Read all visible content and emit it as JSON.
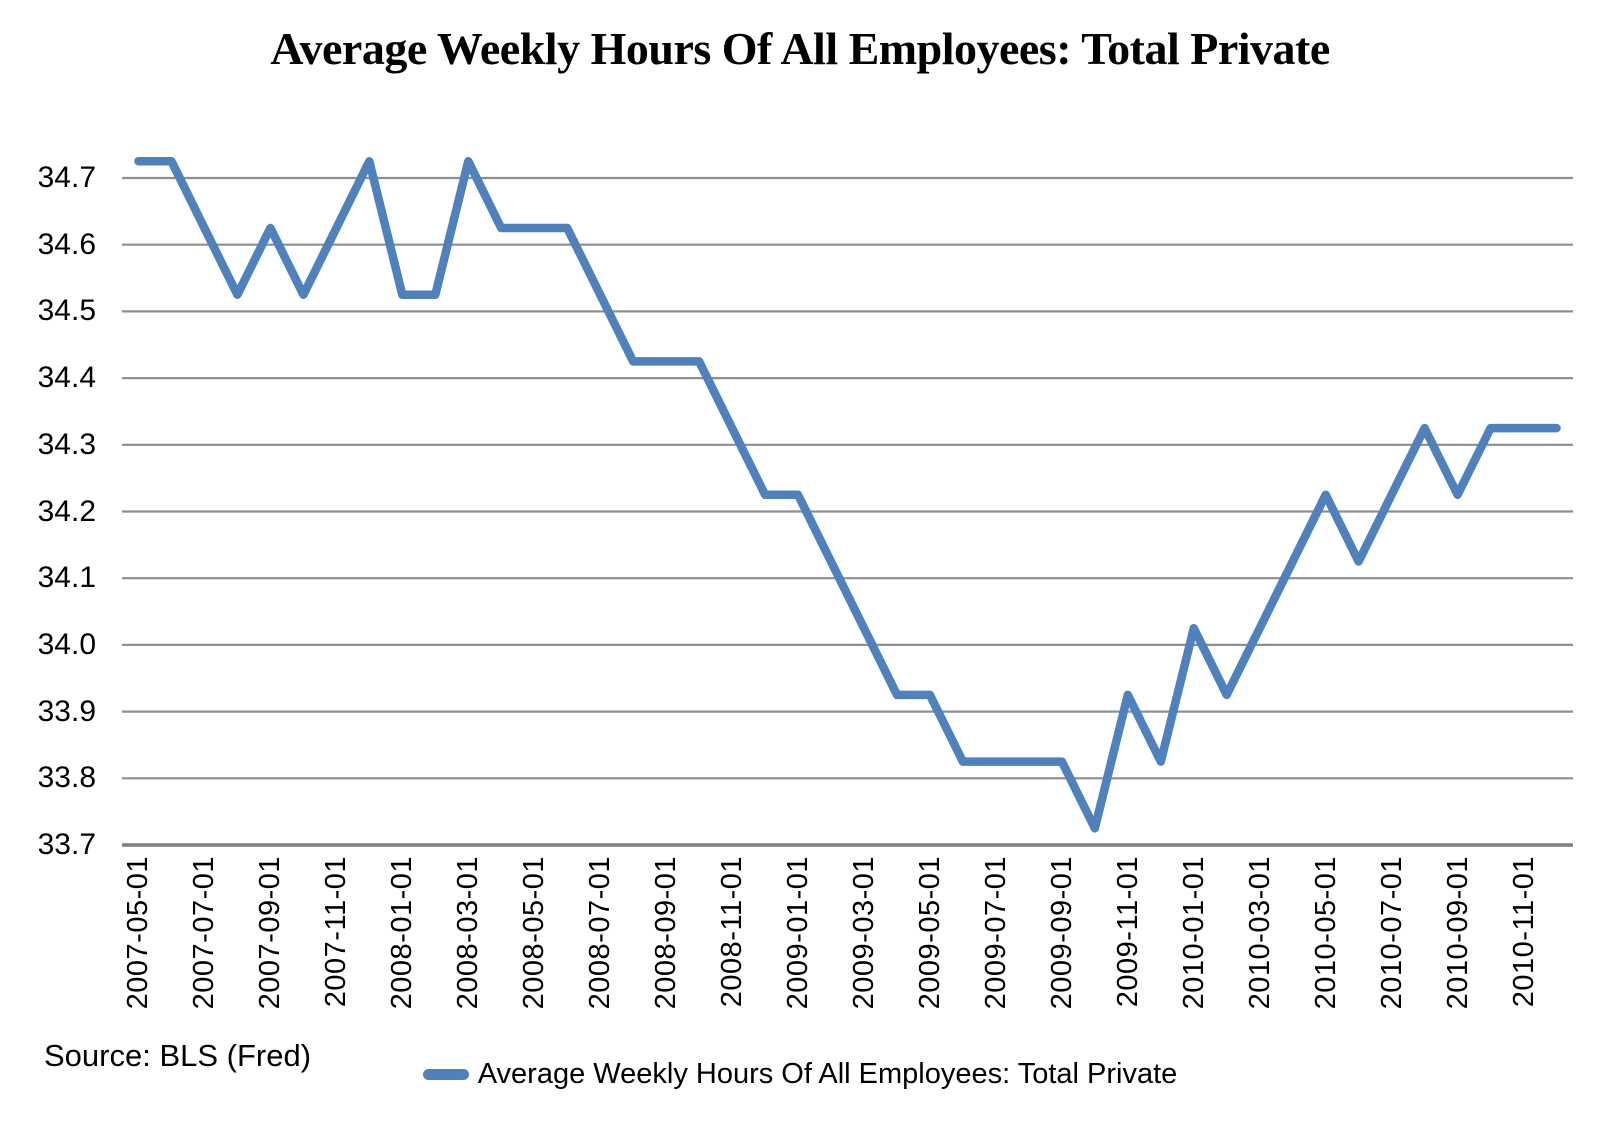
{
  "chart_data": {
    "type": "line",
    "title": "Average Weekly Hours Of All Employees: Total Private",
    "source_note": "Source: BLS (Fred)",
    "legend_label": "Average Weekly Hours Of All Employees: Total Private",
    "legend_position": "bottom",
    "grid": true,
    "xlabel": "",
    "ylabel": "",
    "ylim": [
      33.7,
      34.75
    ],
    "x": [
      "2007-05-01",
      "2007-06-01",
      "2007-07-01",
      "2007-08-01",
      "2007-09-01",
      "2007-10-01",
      "2007-11-01",
      "2007-12-01",
      "2008-01-01",
      "2008-02-01",
      "2008-03-01",
      "2008-04-01",
      "2008-05-01",
      "2008-06-01",
      "2008-07-01",
      "2008-08-01",
      "2008-09-01",
      "2008-10-01",
      "2008-11-01",
      "2008-12-01",
      "2009-01-01",
      "2009-02-01",
      "2009-03-01",
      "2009-04-01",
      "2009-05-01",
      "2009-06-01",
      "2009-07-01",
      "2009-08-01",
      "2009-09-01",
      "2009-10-01",
      "2009-11-01",
      "2009-12-01",
      "2010-01-01",
      "2010-02-01",
      "2010-03-01",
      "2010-04-01",
      "2010-05-01",
      "2010-06-01",
      "2010-07-01",
      "2010-08-01",
      "2010-09-01",
      "2010-10-01",
      "2010-11-01",
      "2010-12-01"
    ],
    "values": [
      34.725,
      34.725,
      34.625,
      34.525,
      34.625,
      34.525,
      34.625,
      34.725,
      34.525,
      34.525,
      34.725,
      34.625,
      34.625,
      34.625,
      34.525,
      34.425,
      34.425,
      34.425,
      34.325,
      34.225,
      34.225,
      34.125,
      34.025,
      33.925,
      33.925,
      33.825,
      33.825,
      33.825,
      33.825,
      33.725,
      33.925,
      33.825,
      34.025,
      33.925,
      34.025,
      34.125,
      34.225,
      34.125,
      34.225,
      34.325,
      34.225,
      34.325,
      34.325,
      34.325
    ],
    "x_tick_labels": [
      "2007-05-01",
      "2007-07-01",
      "2007-09-01",
      "2007-11-01",
      "2008-01-01",
      "2008-03-01",
      "2008-05-01",
      "2008-07-01",
      "2008-09-01",
      "2008-11-01",
      "2009-01-01",
      "2009-03-01",
      "2009-05-01",
      "2009-07-01",
      "2009-09-01",
      "2009-11-01",
      "2010-01-01",
      "2010-03-01",
      "2010-05-01",
      "2010-07-01",
      "2010-09-01",
      "2010-11-01"
    ],
    "y_tick_labels": [
      "34.7",
      "34.6",
      "34.5",
      "34.4",
      "34.3",
      "34.2",
      "34.1",
      "34.0",
      "33.9",
      "33.8",
      "33.7"
    ],
    "y_tick_values": [
      34.7,
      34.6,
      34.5,
      34.4,
      34.3,
      34.2,
      34.1,
      34.0,
      33.9,
      33.8,
      33.7
    ],
    "colors": {
      "line": "#4F81BD",
      "gridline": "#8E8E8E",
      "axis_line": "#7F7F7F",
      "text": "#000000",
      "background": "#FFFFFF"
    }
  }
}
